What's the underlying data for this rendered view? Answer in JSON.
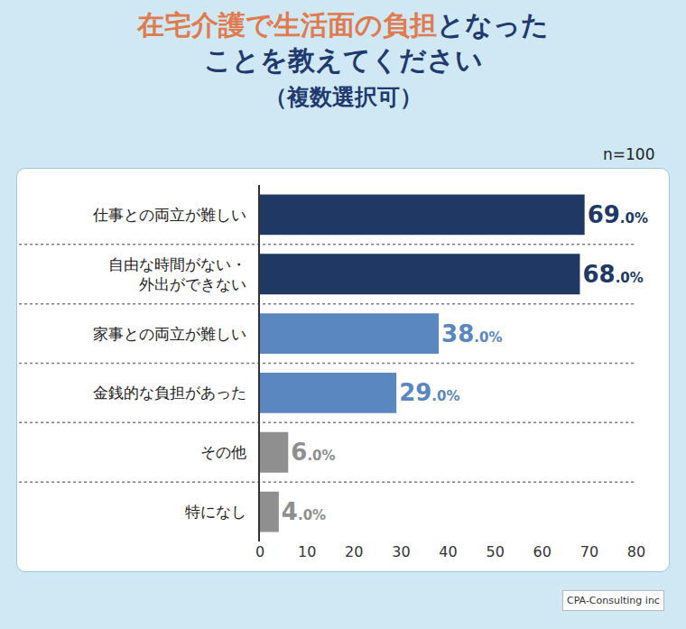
{
  "chart_data": {
    "type": "bar",
    "orientation": "horizontal",
    "title": "在宅介護で生活面の負担となったことを教えてください",
    "subtitle": "（複数選択可）",
    "categories": [
      "仕事との両立が難しい",
      "自由な時間がない・外出ができない",
      "家事との両立が難しい",
      "金銭的な負担があった",
      "その他",
      "特になし"
    ],
    "values": [
      69,
      68,
      38,
      29,
      6,
      4
    ],
    "value_labels": [
      "69.0%",
      "68.0%",
      "38.0%",
      "29.0%",
      "6.0%",
      "4.0%"
    ],
    "colors": [
      "#203864",
      "#203864",
      "#5b87c0",
      "#5b87c0",
      "#8f8f8f",
      "#8f8f8f"
    ],
    "xlim": [
      0,
      80
    ],
    "xticks": [
      0,
      10,
      20,
      30,
      40,
      50,
      60,
      70,
      80
    ],
    "grid": false,
    "data_labels": true,
    "annotations": [
      "n=100",
      "CPA-Consulting inc"
    ]
  }
}
